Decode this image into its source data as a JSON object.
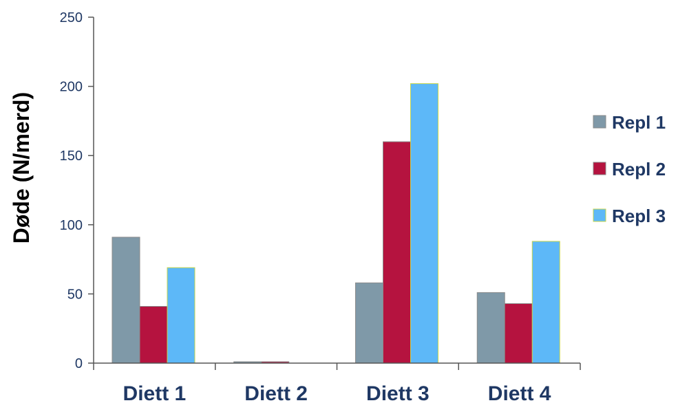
{
  "chart_data": {
    "type": "bar",
    "categories": [
      "Diett 1",
      "Diett 2",
      "Diett 3",
      "Diett 4"
    ],
    "series": [
      {
        "name": "Repl 1",
        "values": [
          91,
          1,
          58,
          51
        ],
        "color": "#7f99a8"
      },
      {
        "name": "Repl 2",
        "values": [
          41,
          1,
          160,
          43
        ],
        "color": "#b5133f"
      },
      {
        "name": "Repl 3",
        "values": [
          69,
          0,
          202,
          88
        ],
        "color": "#5db8f8"
      }
    ],
    "title": "",
    "xlabel": "",
    "ylabel": "Døde (N/merd)",
    "ylim": [
      0,
      250
    ],
    "yticks": [
      0,
      50,
      100,
      150,
      200,
      250
    ],
    "grid": false,
    "legend": "right",
    "colors": {
      "axis": "#555555",
      "tick_text": "#1f3864",
      "bar_outline_repl3": "#c8d64a"
    }
  }
}
